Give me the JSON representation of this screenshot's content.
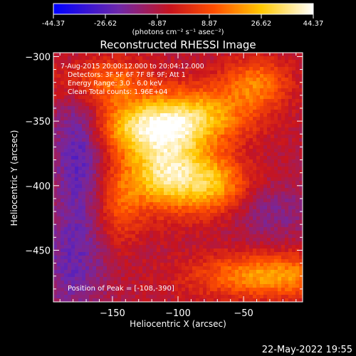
{
  "chart_data": {
    "type": "heatmap",
    "title": "Reconstructed RHESSI Image",
    "xlabel": "Heliocentric X (arcsec)",
    "ylabel": "Heliocentric Y (arcsec)",
    "xlim": [
      -195,
      -5
    ],
    "ylim": [
      -490,
      -297
    ],
    "xticks": [
      -150,
      -100,
      -50
    ],
    "yticks": [
      -300,
      -350,
      -400,
      -450
    ],
    "colorbar": {
      "ticks": [
        "-44.37",
        "-26.62",
        "-8.87",
        "8.87",
        "26.62",
        "44.37"
      ],
      "range": [
        -44.37,
        44.37
      ],
      "units_label": "(photons cm⁻² s⁻¹ asec⁻²)"
    },
    "annotations": [
      "7-Aug-2015 20:00:12.000 to 20:04:12.000",
      "Detectors: 3F 5F 6F 7F 8F 9F; Att 1",
      "Energy Range: 3.0 - 6.0 keV",
      "Clean     Total counts: 1.96E+04"
    ],
    "peak_label": "Position of Peak = [-108,-390]",
    "peak_position": [
      -108,
      -390
    ],
    "sources": [
      {
        "x": -108,
        "y": -390,
        "amp": 44.37,
        "sx": 22,
        "sy": 20
      },
      {
        "x": -125,
        "y": -355,
        "amp": 34,
        "sx": 28,
        "sy": 14
      },
      {
        "x": -85,
        "y": -345,
        "amp": 30,
        "sx": 30,
        "sy": 16
      },
      {
        "x": -160,
        "y": -320,
        "amp": 24,
        "sx": 25,
        "sy": 14
      },
      {
        "x": -40,
        "y": -320,
        "amp": 22,
        "sx": 18,
        "sy": 14
      },
      {
        "x": -70,
        "y": -400,
        "amp": 26,
        "sx": 18,
        "sy": 16
      },
      {
        "x": -30,
        "y": -470,
        "amp": 30,
        "sx": 40,
        "sy": 12
      },
      {
        "x": -145,
        "y": -415,
        "amp": 16,
        "sx": 12,
        "sy": 22
      },
      {
        "x": -175,
        "y": -365,
        "amp": -20,
        "sx": 14,
        "sy": 40
      },
      {
        "x": -180,
        "y": -460,
        "amp": -14,
        "sx": 18,
        "sy": 30
      },
      {
        "x": -30,
        "y": -420,
        "amp": -10,
        "sx": 25,
        "sy": 15
      }
    ]
  },
  "footer": {
    "timestamp": "22-May-2022 19:55"
  }
}
